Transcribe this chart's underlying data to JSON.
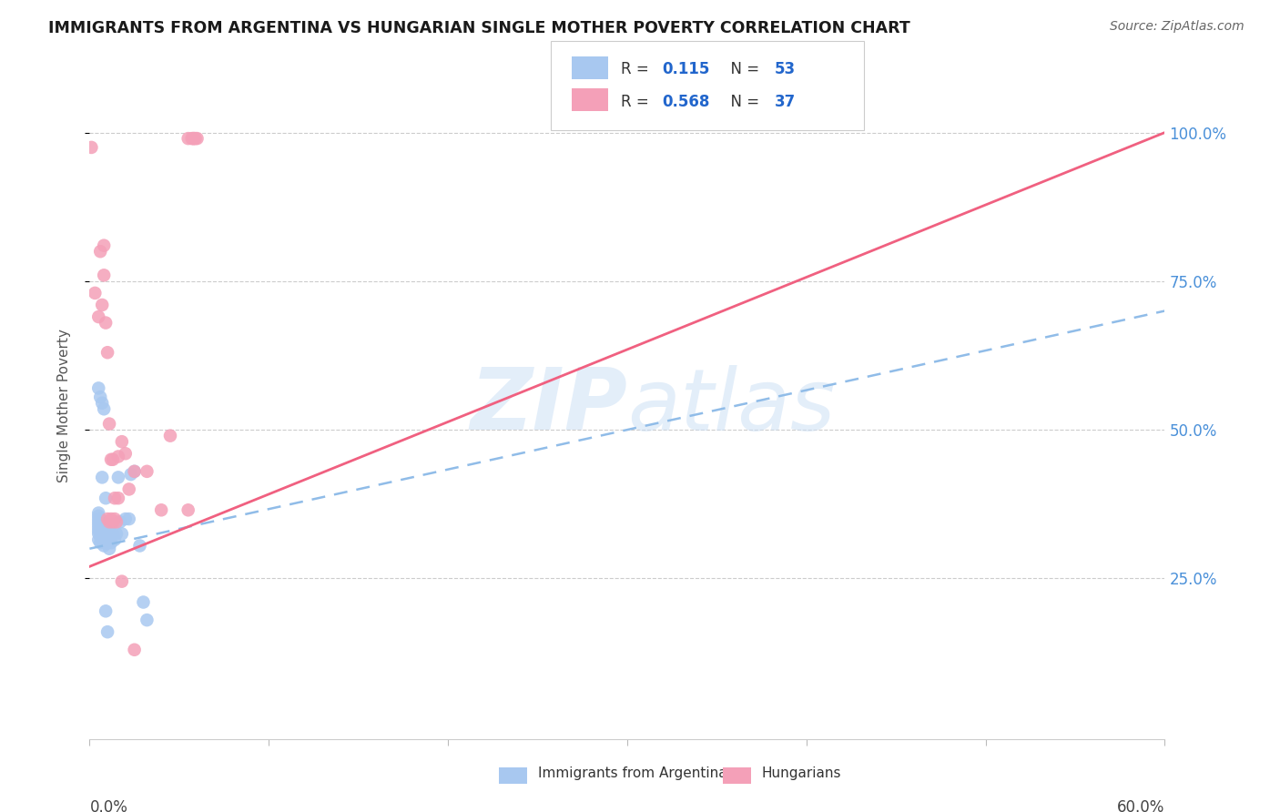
{
  "title": "IMMIGRANTS FROM ARGENTINA VS HUNGARIAN SINGLE MOTHER POVERTY CORRELATION CHART",
  "source": "Source: ZipAtlas.com",
  "ylabel": "Single Mother Poverty",
  "yaxis_labels": [
    "25.0%",
    "50.0%",
    "75.0%",
    "100.0%"
  ],
  "yaxis_values": [
    0.25,
    0.5,
    0.75,
    1.0
  ],
  "xlim": [
    0.0,
    0.6
  ],
  "ylim": [
    -0.02,
    1.1
  ],
  "blue_color": "#a8c8f0",
  "pink_color": "#f4a0b8",
  "pink_line_color": "#f06080",
  "blue_line_color": "#90bce8",
  "watermark_color": "#cce0f5",
  "blue_scatter_x": [
    0.005,
    0.005,
    0.005,
    0.005,
    0.005,
    0.005,
    0.005,
    0.005,
    0.005,
    0.006,
    0.006,
    0.006,
    0.006,
    0.006,
    0.007,
    0.007,
    0.007,
    0.007,
    0.008,
    0.008,
    0.008,
    0.008,
    0.009,
    0.009,
    0.009,
    0.01,
    0.01,
    0.01,
    0.01,
    0.011,
    0.011,
    0.011,
    0.012,
    0.012,
    0.013,
    0.014,
    0.015,
    0.016,
    0.017,
    0.018,
    0.02,
    0.022,
    0.023,
    0.025,
    0.028,
    0.03,
    0.032,
    0.005,
    0.006,
    0.007,
    0.008,
    0.009,
    0.01
  ],
  "blue_scatter_y": [
    0.315,
    0.325,
    0.33,
    0.335,
    0.34,
    0.345,
    0.35,
    0.355,
    0.36,
    0.31,
    0.32,
    0.33,
    0.34,
    0.35,
    0.315,
    0.325,
    0.335,
    0.42,
    0.305,
    0.315,
    0.325,
    0.335,
    0.31,
    0.32,
    0.385,
    0.31,
    0.32,
    0.33,
    0.34,
    0.3,
    0.315,
    0.325,
    0.31,
    0.34,
    0.325,
    0.315,
    0.325,
    0.42,
    0.345,
    0.325,
    0.35,
    0.35,
    0.425,
    0.43,
    0.305,
    0.21,
    0.18,
    0.57,
    0.555,
    0.545,
    0.535,
    0.195,
    0.16
  ],
  "blue_regline_x": [
    0.0,
    0.6
  ],
  "blue_regline_y": [
    0.3,
    0.7
  ],
  "pink_scatter_x": [
    0.001,
    0.003,
    0.005,
    0.006,
    0.007,
    0.008,
    0.008,
    0.009,
    0.01,
    0.011,
    0.012,
    0.013,
    0.014,
    0.016,
    0.018,
    0.02,
    0.022,
    0.025,
    0.045,
    0.055,
    0.057,
    0.058,
    0.058,
    0.059,
    0.06,
    0.01,
    0.011,
    0.012,
    0.013,
    0.014,
    0.015,
    0.016,
    0.032,
    0.04,
    0.055,
    0.018,
    0.025
  ],
  "pink_scatter_y": [
    0.975,
    0.73,
    0.69,
    0.8,
    0.71,
    0.81,
    0.76,
    0.68,
    0.63,
    0.51,
    0.45,
    0.45,
    0.385,
    0.385,
    0.48,
    0.46,
    0.4,
    0.43,
    0.49,
    0.99,
    0.99,
    0.99,
    0.99,
    0.99,
    0.99,
    0.35,
    0.345,
    0.35,
    0.345,
    0.35,
    0.345,
    0.455,
    0.43,
    0.365,
    0.365,
    0.245,
    0.13
  ],
  "pink_regline_x": [
    0.0,
    0.6
  ],
  "pink_regline_y": [
    0.27,
    1.0
  ]
}
